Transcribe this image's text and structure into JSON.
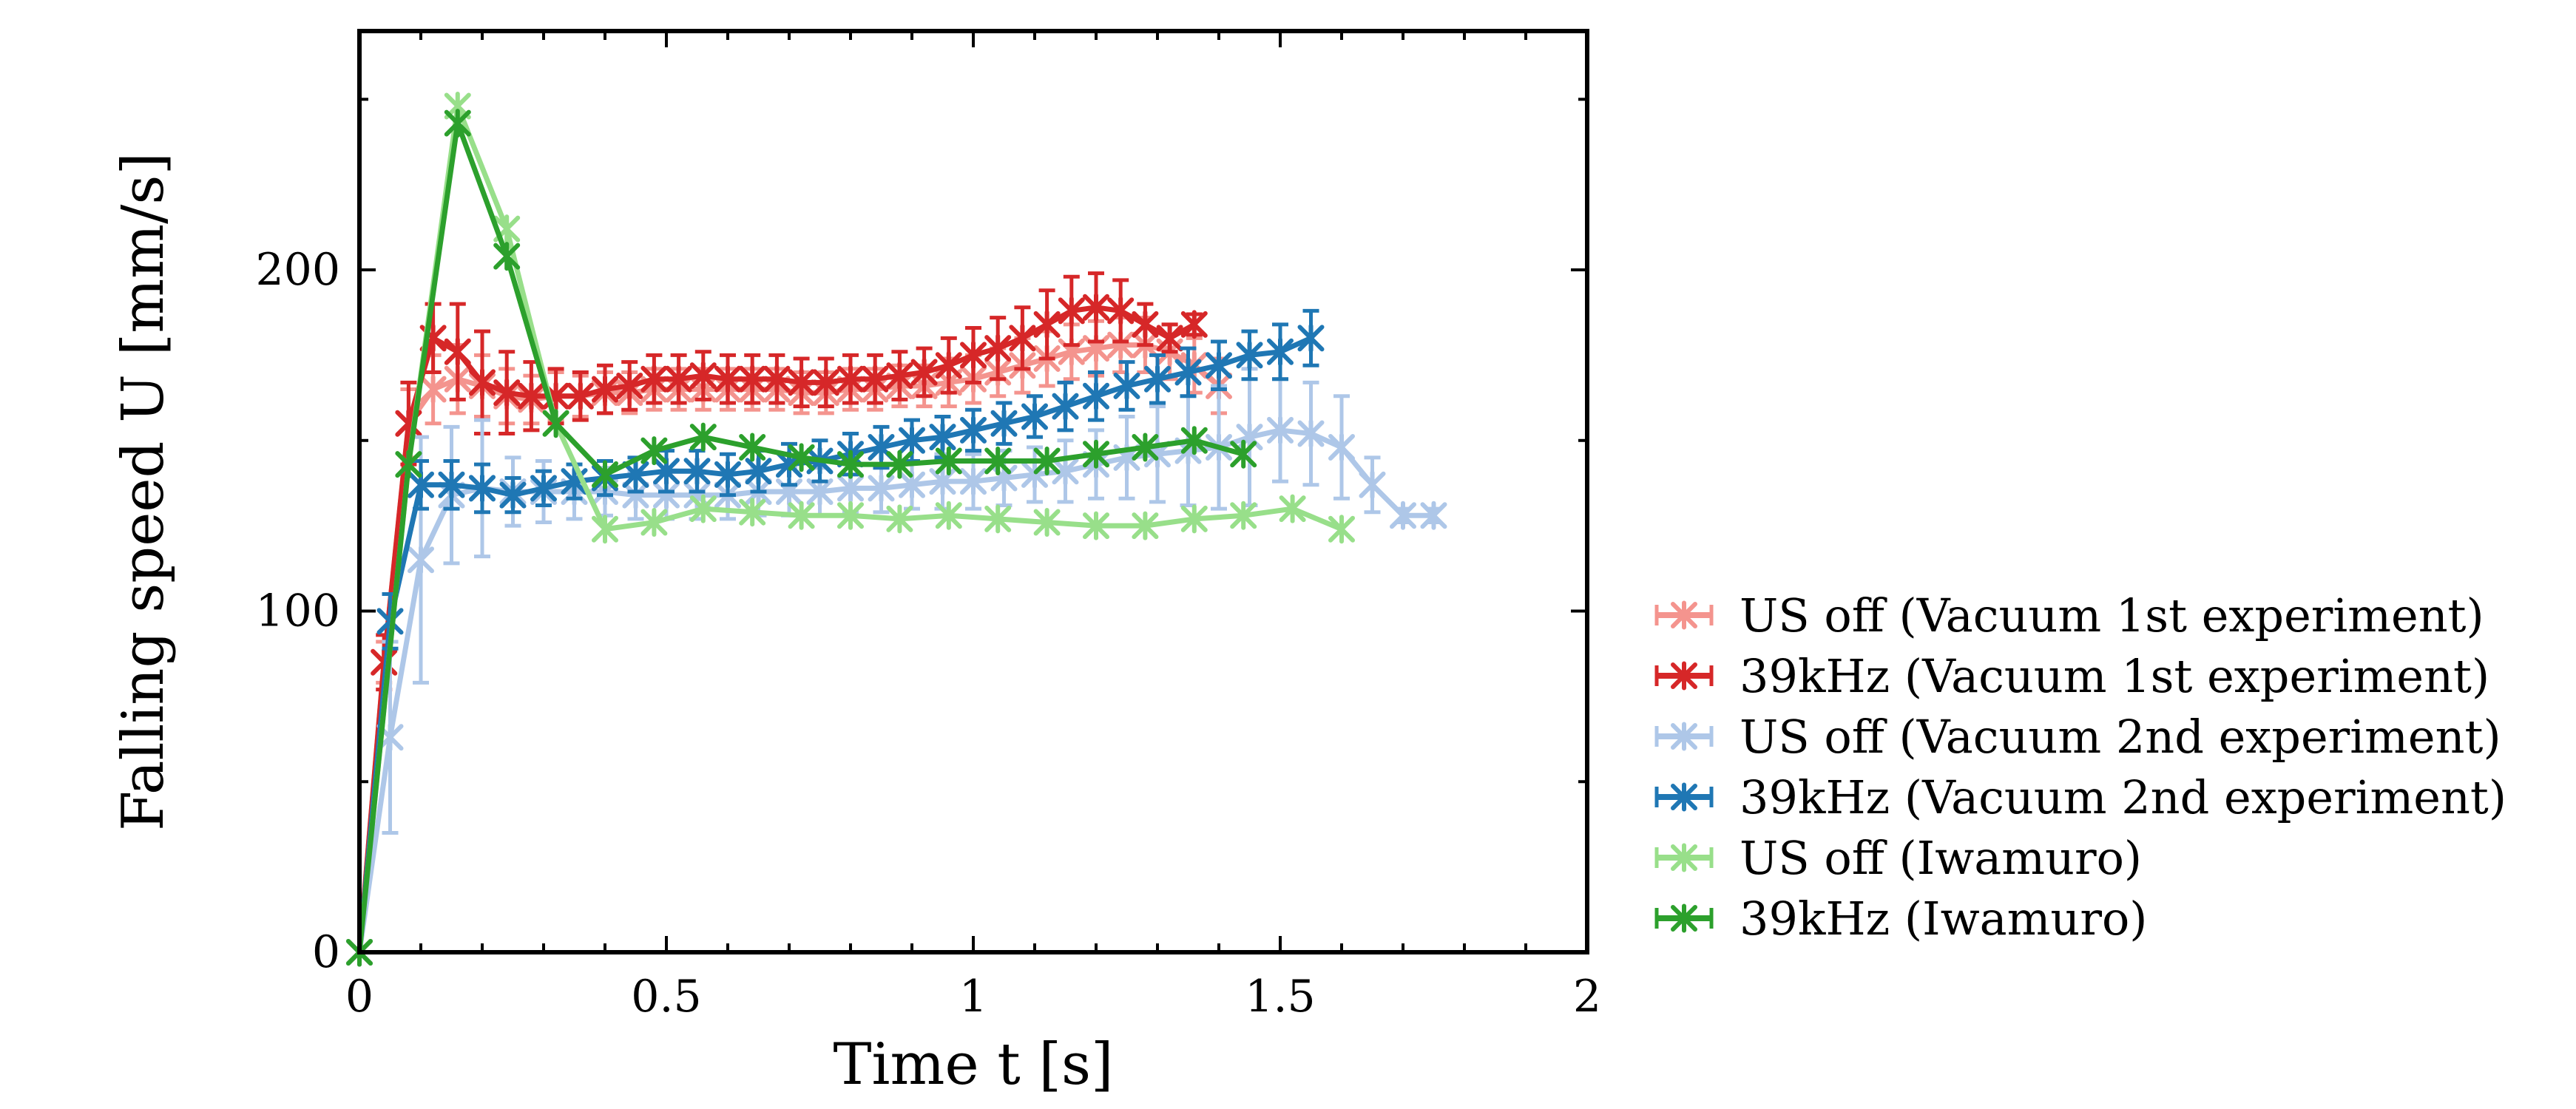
{
  "chart_data": {
    "type": "line",
    "xlabel": "Time t [s]",
    "ylabel": "Falling speed U [mm/s]",
    "xlim": [
      0,
      2
    ],
    "ylim": [
      0,
      270
    ],
    "xticks": [
      0,
      0.5,
      1,
      1.5,
      2
    ],
    "xtick_labels": [
      "0",
      "0.5",
      "1",
      "1.5",
      "2"
    ],
    "yticks": [
      0,
      100,
      200
    ],
    "ytick_labels": [
      "0",
      "100",
      "200"
    ],
    "grid": false,
    "legend_position": "right, outside plot",
    "marker": "asterisk-x",
    "series": [
      {
        "name": "US off (Vacuum 1st experiment)",
        "color": "#f4948e",
        "x": [
          0,
          0.04,
          0.08,
          0.12,
          0.16,
          0.2,
          0.24,
          0.28,
          0.32,
          0.36,
          0.4,
          0.44,
          0.48,
          0.52,
          0.56,
          0.6,
          0.64,
          0.68,
          0.72,
          0.76,
          0.8,
          0.84,
          0.88,
          0.92,
          0.96,
          1.0,
          1.04,
          1.08,
          1.12,
          1.16,
          1.2,
          1.24,
          1.28,
          1.32,
          1.36,
          1.4
        ],
        "y": [
          0,
          85,
          155,
          165,
          168,
          166,
          163,
          162,
          163,
          163,
          164,
          164,
          165,
          165,
          165,
          165,
          165,
          165,
          164,
          164,
          165,
          165,
          166,
          166,
          167,
          168,
          170,
          172,
          174,
          176,
          177,
          178,
          178,
          176,
          172,
          166
        ],
        "err": [
          0,
          6,
          10,
          10,
          10,
          9,
          8,
          7,
          7,
          6,
          6,
          6,
          6,
          6,
          6,
          6,
          6,
          6,
          6,
          6,
          6,
          6,
          6,
          6,
          7,
          7,
          7,
          8,
          8,
          8,
          8,
          8,
          8,
          8,
          8,
          8
        ]
      },
      {
        "name": "39kHz (Vacuum 1st experiment)",
        "color": "#d62728",
        "x": [
          0,
          0.04,
          0.08,
          0.12,
          0.16,
          0.2,
          0.24,
          0.28,
          0.32,
          0.36,
          0.4,
          0.44,
          0.48,
          0.52,
          0.56,
          0.6,
          0.64,
          0.68,
          0.72,
          0.76,
          0.8,
          0.84,
          0.88,
          0.92,
          0.96,
          1.0,
          1.04,
          1.08,
          1.12,
          1.16,
          1.2,
          1.24,
          1.28,
          1.32,
          1.36
        ],
        "y": [
          0,
          85,
          155,
          180,
          176,
          167,
          164,
          163,
          163,
          163,
          165,
          166,
          168,
          168,
          169,
          168,
          168,
          168,
          167,
          167,
          168,
          168,
          169,
          170,
          172,
          175,
          177,
          180,
          184,
          188,
          189,
          188,
          184,
          180,
          184
        ],
        "err": [
          0,
          8,
          12,
          10,
          14,
          15,
          12,
          10,
          8,
          7,
          7,
          7,
          7,
          7,
          7,
          7,
          7,
          7,
          7,
          7,
          7,
          7,
          7,
          7,
          8,
          8,
          9,
          9,
          10,
          10,
          10,
          9,
          6,
          4,
          3
        ]
      },
      {
        "name": "US off (Vacuum 2nd experiment)",
        "color": "#aec7e8",
        "x": [
          0,
          0.05,
          0.1,
          0.15,
          0.2,
          0.25,
          0.3,
          0.35,
          0.4,
          0.45,
          0.5,
          0.55,
          0.6,
          0.65,
          0.7,
          0.75,
          0.8,
          0.85,
          0.9,
          0.95,
          1.0,
          1.05,
          1.1,
          1.15,
          1.2,
          1.25,
          1.3,
          1.35,
          1.4,
          1.45,
          1.5,
          1.55,
          1.6,
          1.65,
          1.7,
          1.75
        ],
        "y": [
          0,
          63,
          115,
          134,
          136,
          135,
          135,
          135,
          135,
          134,
          134,
          134,
          134,
          135,
          135,
          135,
          136,
          136,
          137,
          138,
          138,
          139,
          140,
          141,
          143,
          145,
          146,
          147,
          148,
          151,
          153,
          152,
          148,
          137,
          128,
          128
        ],
        "err": [
          0,
          28,
          36,
          20,
          20,
          10,
          9,
          8,
          7,
          7,
          7,
          7,
          7,
          7,
          7,
          7,
          7,
          7,
          7,
          8,
          8,
          8,
          8,
          9,
          10,
          12,
          14,
          16,
          18,
          20,
          15,
          15,
          15,
          8,
          2,
          2
        ]
      },
      {
        "name": "39kHz (Vacuum 2nd experiment)",
        "color": "#1f77b4",
        "x": [
          0,
          0.05,
          0.1,
          0.15,
          0.2,
          0.25,
          0.3,
          0.35,
          0.4,
          0.45,
          0.5,
          0.55,
          0.6,
          0.65,
          0.7,
          0.75,
          0.8,
          0.85,
          0.9,
          0.95,
          1.0,
          1.05,
          1.1,
          1.15,
          1.2,
          1.25,
          1.3,
          1.35,
          1.4,
          1.45,
          1.5,
          1.55
        ],
        "y": [
          0,
          97,
          137,
          137,
          136,
          134,
          136,
          138,
          139,
          140,
          141,
          141,
          140,
          141,
          143,
          144,
          146,
          148,
          150,
          151,
          153,
          155,
          157,
          160,
          163,
          166,
          168,
          170,
          172,
          175,
          176,
          180
        ],
        "err": [
          0,
          8,
          7,
          7,
          7,
          5,
          5,
          5,
          5,
          5,
          6,
          6,
          6,
          6,
          6,
          6,
          6,
          6,
          6,
          6,
          6,
          6,
          6,
          7,
          7,
          7,
          7,
          7,
          7,
          7,
          8,
          8
        ]
      },
      {
        "name": "US off (Iwamuro)",
        "color": "#98df8a",
        "x": [
          0,
          0.08,
          0.16,
          0.24,
          0.32,
          0.4,
          0.48,
          0.56,
          0.64,
          0.72,
          0.8,
          0.88,
          0.96,
          1.04,
          1.12,
          1.2,
          1.28,
          1.36,
          1.44,
          1.52,
          1.6
        ],
        "y": [
          0,
          143,
          248,
          212,
          155,
          124,
          126,
          130,
          129,
          128,
          128,
          127,
          128,
          127,
          126,
          125,
          125,
          127,
          128,
          130,
          124
        ],
        "err": [
          0,
          0,
          0,
          0,
          0,
          0,
          0,
          0,
          0,
          0,
          0,
          0,
          0,
          0,
          0,
          0,
          0,
          0,
          0,
          0,
          0
        ]
      },
      {
        "name": "39kHz (Iwamuro)",
        "color": "#2ca02c",
        "x": [
          0,
          0.08,
          0.16,
          0.24,
          0.32,
          0.4,
          0.48,
          0.56,
          0.64,
          0.72,
          0.8,
          0.88,
          0.96,
          1.04,
          1.12,
          1.2,
          1.28,
          1.36,
          1.44
        ],
        "y": [
          0,
          143,
          243,
          204,
          155,
          140,
          147,
          151,
          148,
          145,
          143,
          143,
          144,
          144,
          144,
          146,
          148,
          150,
          146
        ],
        "err": [
          0,
          0,
          0,
          0,
          0,
          0,
          0,
          0,
          0,
          0,
          0,
          0,
          0,
          0,
          0,
          0,
          0,
          0,
          0
        ]
      }
    ]
  }
}
